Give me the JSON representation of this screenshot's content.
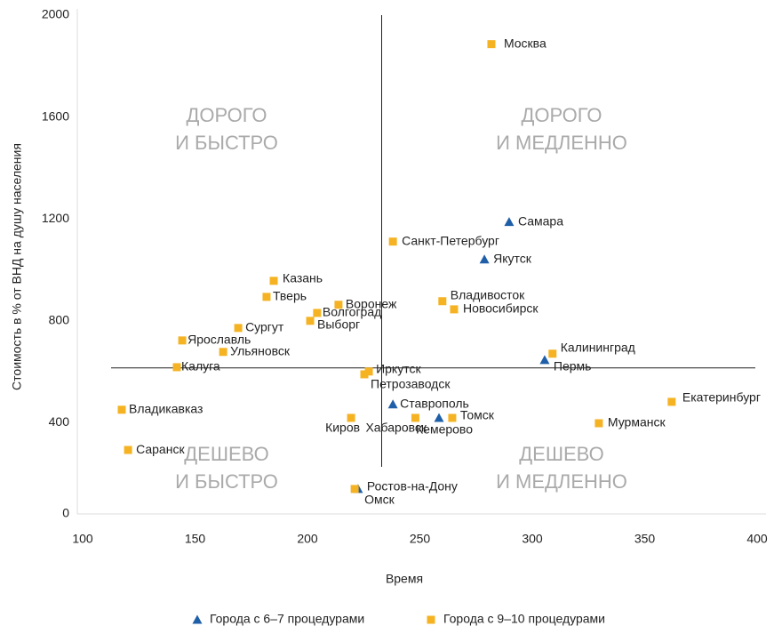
{
  "chart_data": {
    "type": "scatter",
    "x_label": "Время",
    "y_label": "Стоимость в % от ВНД на душу населения",
    "xlim": [
      100,
      400
    ],
    "xticks": [
      100,
      150,
      200,
      250,
      300,
      350,
      400
    ],
    "ylim": [
      0,
      2000
    ],
    "yticks": [
      0,
      400,
      800,
      1200,
      1600,
      2000
    ],
    "reference_lines": {
      "x": 233,
      "y": 615
    },
    "annotations": [
      {
        "lines": [
          "ДОРОГО",
          "И БЫСТРО"
        ]
      },
      {
        "lines": [
          "ДОРОГО",
          "И МЕДЛЕННО"
        ]
      },
      {
        "lines": [
          "ДЕШЕВО",
          "И БЫСТРО"
        ]
      },
      {
        "lines": [
          "ДЕШЕВО",
          "И МЕДЛЕННО"
        ]
      }
    ],
    "series": [
      {
        "name": "Города с 6–7 процедурами",
        "color": "#1f5fa8",
        "marker": "triangle",
        "labels": [
          "Самара",
          "Якутск",
          "Пермь",
          "Ставрополь",
          "Кемерово",
          "Ростов-на-Дону"
        ],
        "x": [
          289.7,
          278.7,
          305.5,
          238,
          258.5,
          222.5
        ],
        "values": [
          1188,
          1041,
          646,
          472,
          419,
          140
        ]
      },
      {
        "name": "Города с 9–10 процедурами",
        "color": "#f5b323",
        "marker": "square",
        "labels": [
          "Москва",
          "Санкт-Петербург",
          "Казань",
          "Тверь",
          "Воронеж",
          "Волгоград",
          "Выборг",
          "Сургут",
          "Ярославль",
          "Ульяновск",
          "Калуга",
          "Иркутск",
          "Петрозаводск",
          "Владивосток",
          "Новосибирск",
          "Калининград",
          "Екатеринбург",
          "Мурманск",
          "Хабаровск",
          "Томск",
          "Киров",
          "Владикавказ",
          "Саранск",
          "Омск"
        ],
        "x": [
          281.8,
          238,
          185,
          181.8,
          213.8,
          204.3,
          201.2,
          169.2,
          144.3,
          162.5,
          141.9,
          227.3,
          225.3,
          260,
          265.2,
          309,
          362,
          329.6,
          248,
          264.4,
          219.4,
          117.4,
          120.2,
          221
        ],
        "values": [
          1886,
          1111,
          957,
          894,
          863,
          831,
          800,
          772,
          723,
          678,
          618,
          601,
          590,
          877,
          845,
          671,
          482,
          398,
          419,
          419,
          419,
          451,
          293,
          140
        ]
      }
    ]
  }
}
